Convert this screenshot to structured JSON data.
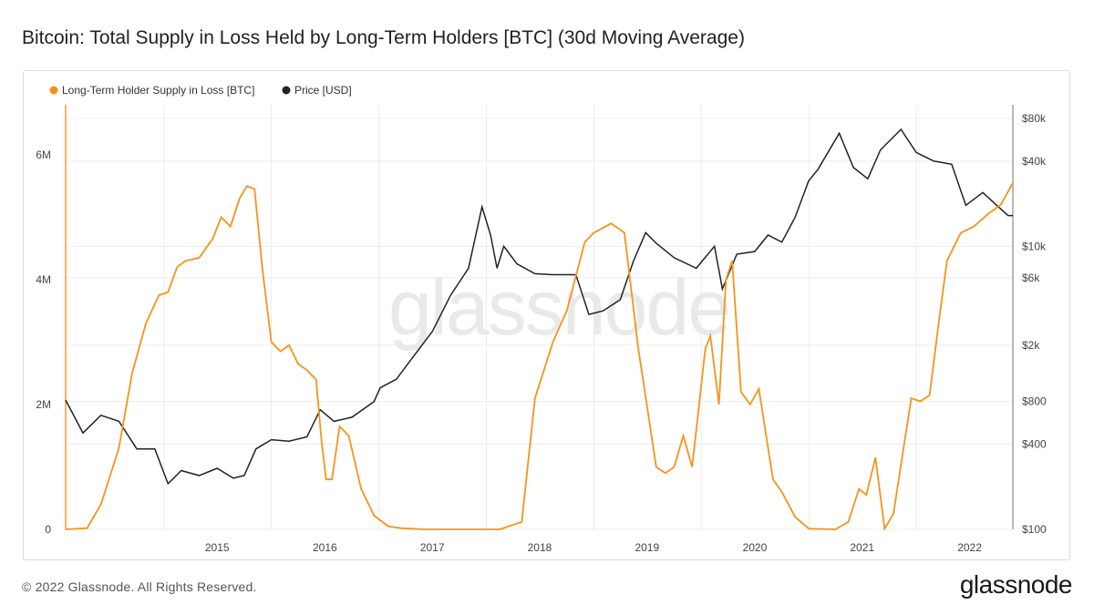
{
  "page": {
    "title": "Bitcoin: Total Supply in Loss Held by Long-Term Holders [BTC] (30d Moving Average)",
    "copyright": "© 2022 Glassnode. All Rights Reserved.",
    "logo_text": "glassnode",
    "watermark": "glassnode"
  },
  "colors": {
    "supply_series": "#f7931a",
    "price_series": "#222222",
    "grid": "#ececec",
    "right_axis_line": "#9a9a9a"
  },
  "chart_data": {
    "type": "line",
    "title": "Bitcoin: Total Supply in Loss Held by Long-Term Holders [BTC] (30d Moving Average)",
    "x_axis": {
      "type": "date",
      "range": [
        "2014-02-01",
        "2022-11-25"
      ],
      "ticks": [
        "2015",
        "2016",
        "2017",
        "2018",
        "2019",
        "2020",
        "2021",
        "2022"
      ]
    },
    "y_left": {
      "range": [
        0,
        6800000
      ],
      "ticks": [
        {
          "value": 0,
          "label": "0"
        },
        {
          "value": 2000000,
          "label": "2M"
        },
        {
          "value": 4000000,
          "label": "4M"
        },
        {
          "value": 6000000,
          "label": "6M"
        }
      ]
    },
    "y_right": {
      "scale": "log",
      "range": [
        100,
        100000
      ],
      "ticks": [
        {
          "value": 100,
          "label": "$100"
        },
        {
          "value": 400,
          "label": "$400"
        },
        {
          "value": 800,
          "label": "$800"
        },
        {
          "value": 2000,
          "label": "$2k"
        },
        {
          "value": 6000,
          "label": "$6k"
        },
        {
          "value": 10000,
          "label": "$10k"
        },
        {
          "value": 40000,
          "label": "$40k"
        },
        {
          "value": 80000,
          "label": "$80k"
        }
      ]
    },
    "grid": true,
    "legend": {
      "placement": "top-left",
      "items": [
        {
          "label": "Long-Term Holder Supply in Loss [BTC]",
          "color": "#f7931a"
        },
        {
          "label": "Price [USD]",
          "color": "#222222"
        }
      ]
    },
    "series": [
      {
        "name": "Long-Term Holder Supply in Loss [BTC]",
        "axis": "left",
        "color": "#f7931a",
        "points": [
          [
            "2014-02-01",
            0
          ],
          [
            "2014-04-15",
            20000
          ],
          [
            "2014-06-01",
            400000
          ],
          [
            "2014-08-01",
            1300000
          ],
          [
            "2014-09-15",
            2500000
          ],
          [
            "2014-11-01",
            3300000
          ],
          [
            "2014-12-15",
            3750000
          ],
          [
            "2015-01-15",
            3800000
          ],
          [
            "2015-02-15",
            4200000
          ],
          [
            "2015-03-15",
            4300000
          ],
          [
            "2015-05-01",
            4350000
          ],
          [
            "2015-06-15",
            4650000
          ],
          [
            "2015-07-15",
            5000000
          ],
          [
            "2015-08-15",
            4850000
          ],
          [
            "2015-09-15",
            5300000
          ],
          [
            "2015-10-10",
            5500000
          ],
          [
            "2015-11-05",
            5450000
          ],
          [
            "2015-12-01",
            4200000
          ],
          [
            "2016-01-01",
            3000000
          ],
          [
            "2016-02-01",
            2850000
          ],
          [
            "2016-03-01",
            2950000
          ],
          [
            "2016-04-01",
            2650000
          ],
          [
            "2016-05-01",
            2550000
          ],
          [
            "2016-06-01",
            2400000
          ],
          [
            "2016-06-20",
            1400000
          ],
          [
            "2016-07-05",
            800000
          ],
          [
            "2016-07-25",
            800000
          ],
          [
            "2016-08-20",
            1650000
          ],
          [
            "2016-09-20",
            1500000
          ],
          [
            "2016-11-01",
            650000
          ],
          [
            "2016-12-15",
            220000
          ],
          [
            "2017-02-01",
            50000
          ],
          [
            "2017-03-15",
            20000
          ],
          [
            "2017-06-01",
            0
          ],
          [
            "2018-02-15",
            0
          ],
          [
            "2018-05-01",
            120000
          ],
          [
            "2018-06-15",
            2100000
          ],
          [
            "2018-08-15",
            3000000
          ],
          [
            "2018-10-01",
            3500000
          ],
          [
            "2018-12-01",
            4600000
          ],
          [
            "2019-01-01",
            4750000
          ],
          [
            "2019-03-01",
            4900000
          ],
          [
            "2019-04-15",
            4750000
          ],
          [
            "2019-06-01",
            2900000
          ],
          [
            "2019-08-01",
            1000000
          ],
          [
            "2019-09-01",
            900000
          ],
          [
            "2019-10-01",
            1000000
          ],
          [
            "2019-11-01",
            1500000
          ],
          [
            "2019-12-01",
            1000000
          ],
          [
            "2020-01-15",
            2900000
          ],
          [
            "2020-02-01",
            3100000
          ],
          [
            "2020-03-01",
            2000000
          ],
          [
            "2020-03-25",
            4000000
          ],
          [
            "2020-04-15",
            4300000
          ],
          [
            "2020-05-15",
            2200000
          ],
          [
            "2020-06-15",
            2000000
          ],
          [
            "2020-07-15",
            2250000
          ],
          [
            "2020-09-01",
            800000
          ],
          [
            "2020-10-01",
            600000
          ],
          [
            "2020-11-15",
            200000
          ],
          [
            "2021-01-01",
            10000
          ],
          [
            "2021-04-01",
            0
          ],
          [
            "2021-05-15",
            120000
          ],
          [
            "2021-06-20",
            650000
          ],
          [
            "2021-07-15",
            550000
          ],
          [
            "2021-08-15",
            1150000
          ],
          [
            "2021-09-15",
            10000
          ],
          [
            "2021-10-15",
            250000
          ],
          [
            "2021-11-25",
            1500000
          ],
          [
            "2021-12-15",
            2100000
          ],
          [
            "2022-01-15",
            2050000
          ],
          [
            "2022-02-15",
            2150000
          ],
          [
            "2022-03-15",
            3200000
          ],
          [
            "2022-04-15",
            4300000
          ],
          [
            "2022-06-01",
            4750000
          ],
          [
            "2022-07-15",
            4850000
          ],
          [
            "2022-09-01",
            5050000
          ],
          [
            "2022-10-15",
            5200000
          ],
          [
            "2022-11-25",
            5550000
          ]
        ]
      },
      {
        "name": "Price [USD]",
        "axis": "right",
        "color": "#222222",
        "points": [
          [
            "2014-02-01",
            820
          ],
          [
            "2014-04-01",
            480
          ],
          [
            "2014-06-01",
            640
          ],
          [
            "2014-08-01",
            580
          ],
          [
            "2014-10-01",
            370
          ],
          [
            "2014-12-01",
            370
          ],
          [
            "2015-01-15",
            210
          ],
          [
            "2015-03-01",
            260
          ],
          [
            "2015-05-01",
            240
          ],
          [
            "2015-07-01",
            270
          ],
          [
            "2015-08-25",
            230
          ],
          [
            "2015-10-01",
            240
          ],
          [
            "2015-11-10",
            370
          ],
          [
            "2016-01-01",
            430
          ],
          [
            "2016-03-01",
            420
          ],
          [
            "2016-05-01",
            450
          ],
          [
            "2016-06-15",
            700
          ],
          [
            "2016-08-01",
            580
          ],
          [
            "2016-10-01",
            620
          ],
          [
            "2016-12-15",
            800
          ],
          [
            "2017-01-05",
            1000
          ],
          [
            "2017-03-01",
            1150
          ],
          [
            "2017-05-01",
            1700
          ],
          [
            "2017-07-01",
            2500
          ],
          [
            "2017-09-01",
            4500
          ],
          [
            "2017-11-01",
            7000
          ],
          [
            "2017-12-17",
            19000
          ],
          [
            "2018-01-15",
            12000
          ],
          [
            "2018-02-06",
            7000
          ],
          [
            "2018-03-01",
            10000
          ],
          [
            "2018-04-15",
            7500
          ],
          [
            "2018-06-15",
            6400
          ],
          [
            "2018-08-15",
            6300
          ],
          [
            "2018-11-01",
            6300
          ],
          [
            "2018-12-15",
            3300
          ],
          [
            "2019-02-01",
            3500
          ],
          [
            "2019-04-01",
            4200
          ],
          [
            "2019-05-15",
            7800
          ],
          [
            "2019-06-26",
            12500
          ],
          [
            "2019-08-01",
            10500
          ],
          [
            "2019-10-01",
            8300
          ],
          [
            "2019-12-15",
            7000
          ],
          [
            "2020-02-15",
            10000
          ],
          [
            "2020-03-13",
            5000
          ],
          [
            "2020-05-01",
            8800
          ],
          [
            "2020-07-01",
            9200
          ],
          [
            "2020-08-15",
            12000
          ],
          [
            "2020-10-01",
            10700
          ],
          [
            "2020-11-15",
            16000
          ],
          [
            "2020-12-31",
            29000
          ],
          [
            "2021-02-01",
            35000
          ],
          [
            "2021-04-14",
            63000
          ],
          [
            "2021-06-01",
            36000
          ],
          [
            "2021-07-20",
            30000
          ],
          [
            "2021-09-01",
            48000
          ],
          [
            "2021-11-10",
            67000
          ],
          [
            "2022-01-01",
            46000
          ],
          [
            "2022-03-01",
            40000
          ],
          [
            "2022-05-01",
            38000
          ],
          [
            "2022-06-18",
            19500
          ],
          [
            "2022-08-15",
            24000
          ],
          [
            "2022-10-01",
            19500
          ],
          [
            "2022-11-09",
            16500
          ],
          [
            "2022-11-25",
            16500
          ]
        ]
      }
    ]
  }
}
